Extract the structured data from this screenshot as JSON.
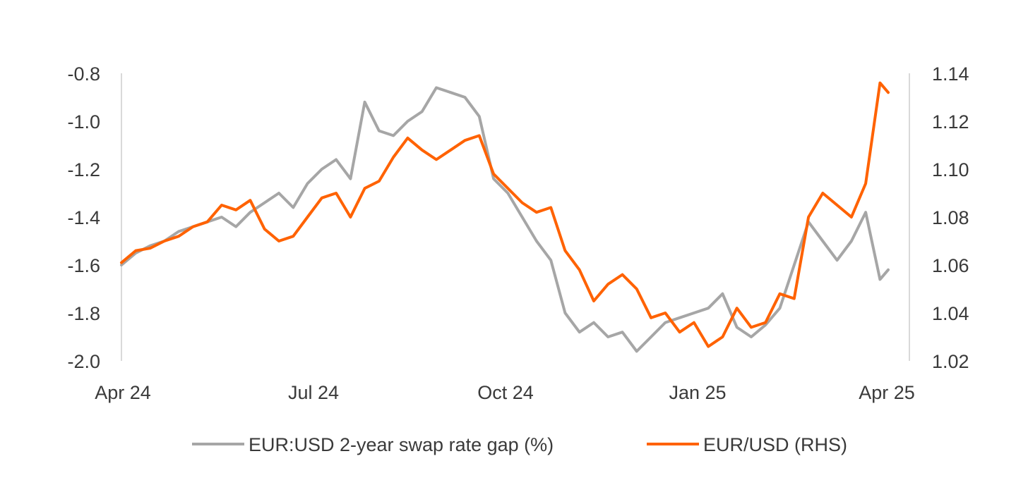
{
  "chart_data": {
    "type": "line",
    "title": "",
    "xlabel": "",
    "ylabel": "",
    "x_ticks": [
      "Apr 24",
      "Jul 24",
      "Oct 24",
      "Jan 25",
      "Apr 25"
    ],
    "y_left": {
      "ticks": [
        "-0.8",
        "-1.0",
        "-1.2",
        "-1.4",
        "-1.6",
        "-1.8",
        "-2.0"
      ],
      "range": [
        -2.0,
        -0.8
      ]
    },
    "y_right": {
      "ticks": [
        "1.14",
        "1.12",
        "1.10",
        "1.08",
        "1.06",
        "1.04",
        "1.02"
      ],
      "range": [
        1.02,
        1.14
      ]
    },
    "grid": false,
    "legend_position": "bottom",
    "series": [
      {
        "name": "EUR:USD 2-year swap rate gap (%)",
        "axis": "left",
        "color": "#a6a6a6",
        "points": [
          [
            "2024-04-01",
            -1.6
          ],
          [
            "2024-04-08",
            -1.55
          ],
          [
            "2024-04-15",
            -1.52
          ],
          [
            "2024-04-22",
            -1.5
          ],
          [
            "2024-04-29",
            -1.46
          ],
          [
            "2024-05-06",
            -1.44
          ],
          [
            "2024-05-13",
            -1.42
          ],
          [
            "2024-05-20",
            -1.4
          ],
          [
            "2024-05-27",
            -1.44
          ],
          [
            "2024-06-03",
            -1.38
          ],
          [
            "2024-06-10",
            -1.34
          ],
          [
            "2024-06-17",
            -1.3
          ],
          [
            "2024-06-24",
            -1.36
          ],
          [
            "2024-07-01",
            -1.26
          ],
          [
            "2024-07-08",
            -1.2
          ],
          [
            "2024-07-15",
            -1.16
          ],
          [
            "2024-07-22",
            -1.24
          ],
          [
            "2024-07-29",
            -0.92
          ],
          [
            "2024-08-05",
            -1.04
          ],
          [
            "2024-08-12",
            -1.06
          ],
          [
            "2024-08-19",
            -1.0
          ],
          [
            "2024-08-26",
            -0.96
          ],
          [
            "2024-09-02",
            -0.86
          ],
          [
            "2024-09-09",
            -0.88
          ],
          [
            "2024-09-16",
            -0.9
          ],
          [
            "2024-09-23",
            -0.98
          ],
          [
            "2024-09-30",
            -1.24
          ],
          [
            "2024-10-07",
            -1.3
          ],
          [
            "2024-10-14",
            -1.4
          ],
          [
            "2024-10-21",
            -1.5
          ],
          [
            "2024-10-28",
            -1.58
          ],
          [
            "2024-11-04",
            -1.8
          ],
          [
            "2024-11-11",
            -1.88
          ],
          [
            "2024-11-18",
            -1.84
          ],
          [
            "2024-11-25",
            -1.9
          ],
          [
            "2024-12-02",
            -1.88
          ],
          [
            "2024-12-09",
            -1.96
          ],
          [
            "2024-12-16",
            -1.9
          ],
          [
            "2024-12-23",
            -1.84
          ],
          [
            "2024-12-30",
            -1.82
          ],
          [
            "2025-01-06",
            -1.8
          ],
          [
            "2025-01-13",
            -1.78
          ],
          [
            "2025-01-20",
            -1.72
          ],
          [
            "2025-01-27",
            -1.86
          ],
          [
            "2025-02-03",
            -1.9
          ],
          [
            "2025-02-10",
            -1.85
          ],
          [
            "2025-02-17",
            -1.78
          ],
          [
            "2025-02-24",
            -1.6
          ],
          [
            "2025-03-03",
            -1.42
          ],
          [
            "2025-03-10",
            -1.5
          ],
          [
            "2025-03-17",
            -1.58
          ],
          [
            "2025-03-24",
            -1.5
          ],
          [
            "2025-03-31",
            -1.38
          ],
          [
            "2025-04-07",
            -1.66
          ],
          [
            "2025-04-11",
            -1.62
          ]
        ]
      },
      {
        "name": "EUR/USD (RHS)",
        "axis": "right",
        "color": "#ff6200",
        "points": [
          [
            "2024-04-01",
            1.061
          ],
          [
            "2024-04-08",
            1.066
          ],
          [
            "2024-04-15",
            1.067
          ],
          [
            "2024-04-22",
            1.07
          ],
          [
            "2024-04-29",
            1.072
          ],
          [
            "2024-05-06",
            1.076
          ],
          [
            "2024-05-13",
            1.078
          ],
          [
            "2024-05-20",
            1.085
          ],
          [
            "2024-05-27",
            1.083
          ],
          [
            "2024-06-03",
            1.087
          ],
          [
            "2024-06-10",
            1.075
          ],
          [
            "2024-06-17",
            1.07
          ],
          [
            "2024-06-24",
            1.072
          ],
          [
            "2024-07-01",
            1.08
          ],
          [
            "2024-07-08",
            1.088
          ],
          [
            "2024-07-15",
            1.09
          ],
          [
            "2024-07-22",
            1.08
          ],
          [
            "2024-07-29",
            1.092
          ],
          [
            "2024-08-05",
            1.095
          ],
          [
            "2024-08-12",
            1.105
          ],
          [
            "2024-08-19",
            1.113
          ],
          [
            "2024-08-26",
            1.108
          ],
          [
            "2024-09-02",
            1.104
          ],
          [
            "2024-09-09",
            1.108
          ],
          [
            "2024-09-16",
            1.112
          ],
          [
            "2024-09-23",
            1.114
          ],
          [
            "2024-09-30",
            1.098
          ],
          [
            "2024-10-07",
            1.092
          ],
          [
            "2024-10-14",
            1.086
          ],
          [
            "2024-10-21",
            1.082
          ],
          [
            "2024-10-28",
            1.084
          ],
          [
            "2024-11-04",
            1.066
          ],
          [
            "2024-11-11",
            1.058
          ],
          [
            "2024-11-18",
            1.045
          ],
          [
            "2024-11-25",
            1.052
          ],
          [
            "2024-12-02",
            1.056
          ],
          [
            "2024-12-09",
            1.05
          ],
          [
            "2024-12-16",
            1.038
          ],
          [
            "2024-12-23",
            1.04
          ],
          [
            "2024-12-30",
            1.032
          ],
          [
            "2025-01-06",
            1.036
          ],
          [
            "2025-01-13",
            1.026
          ],
          [
            "2025-01-20",
            1.03
          ],
          [
            "2025-01-27",
            1.042
          ],
          [
            "2025-02-03",
            1.034
          ],
          [
            "2025-02-10",
            1.036
          ],
          [
            "2025-02-17",
            1.048
          ],
          [
            "2025-02-24",
            1.046
          ],
          [
            "2025-03-03",
            1.08
          ],
          [
            "2025-03-10",
            1.09
          ],
          [
            "2025-03-17",
            1.085
          ],
          [
            "2025-03-24",
            1.08
          ],
          [
            "2025-03-31",
            1.094
          ],
          [
            "2025-04-07",
            1.136
          ],
          [
            "2025-04-11",
            1.132
          ]
        ]
      }
    ]
  }
}
